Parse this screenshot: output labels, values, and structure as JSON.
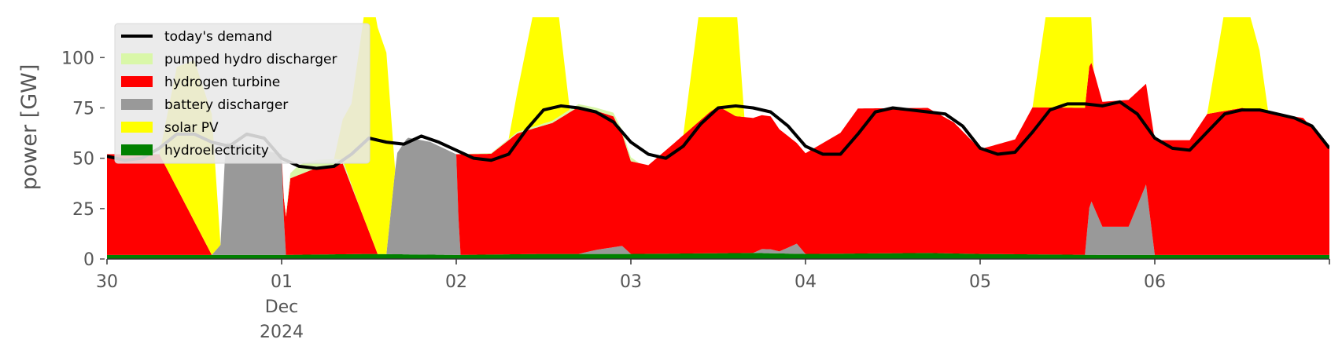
{
  "chart_data": {
    "type": "area",
    "stacked": true,
    "title": "",
    "ylabel": "power [GW]",
    "xlabel": "",
    "x_unit": "day of month",
    "xlim": [
      30.0,
      37.0
    ],
    "ylim": [
      0,
      120
    ],
    "yticks": [
      0,
      25,
      50,
      75,
      100
    ],
    "xticks": [
      {
        "x": 30,
        "label": "30"
      },
      {
        "x": 31,
        "label": "01",
        "sublabel1": "Dec",
        "sublabel2": "2024"
      },
      {
        "x": 32,
        "label": "02"
      },
      {
        "x": 33,
        "label": "03"
      },
      {
        "x": 34,
        "label": "04"
      },
      {
        "x": 35,
        "label": "05"
      },
      {
        "x": 36,
        "label": "06"
      }
    ],
    "grid": false,
    "legend_position": "top-left",
    "legend": [
      {
        "name": "today's demand",
        "kind": "line",
        "color": "#000000"
      },
      {
        "name": "pumped hydro discharger",
        "kind": "patch",
        "color": "#d9f7a8"
      },
      {
        "name": "hydrogen turbine",
        "kind": "patch",
        "color": "#ff0000"
      },
      {
        "name": "battery discharger",
        "kind": "patch",
        "color": "#999999"
      },
      {
        "name": "solar PV",
        "kind": "patch",
        "color": "#ffff00"
      },
      {
        "name": "hydroelectricity",
        "kind": "patch",
        "color": "#008000"
      }
    ],
    "stack_order": [
      "hydroelectricity",
      "battery discharger",
      "hydrogen turbine",
      "pumped hydro discharger",
      "solar PV"
    ],
    "series": [
      {
        "name": "hydroelectricity",
        "color": "#008000",
        "points": [
          [
            30.0,
            2
          ],
          [
            31.0,
            2
          ],
          [
            31.5,
            2.5
          ],
          [
            32.0,
            2
          ],
          [
            32.5,
            2.5
          ],
          [
            33.0,
            2.5
          ],
          [
            33.7,
            3
          ],
          [
            34.0,
            2.5
          ],
          [
            34.7,
            3
          ],
          [
            35.0,
            2.5
          ],
          [
            35.7,
            2
          ],
          [
            36.0,
            2
          ],
          [
            37.0,
            2
          ]
        ]
      },
      {
        "name": "battery discharger",
        "color": "#999999",
        "points": [
          [
            30.0,
            0
          ],
          [
            30.6,
            0
          ],
          [
            30.65,
            5
          ],
          [
            30.68,
            56
          ],
          [
            31.0,
            50
          ],
          [
            31.02,
            0
          ],
          [
            31.6,
            0
          ],
          [
            31.66,
            50
          ],
          [
            31.72,
            58
          ],
          [
            31.85,
            56
          ],
          [
            32.0,
            50
          ],
          [
            32.02,
            0
          ],
          [
            32.7,
            0
          ],
          [
            32.8,
            2
          ],
          [
            32.95,
            4
          ],
          [
            33.0,
            0
          ],
          [
            33.7,
            0
          ],
          [
            33.75,
            2
          ],
          [
            33.8,
            2
          ],
          [
            33.85,
            1
          ],
          [
            33.95,
            5
          ],
          [
            34.0,
            0
          ],
          [
            35.6,
            0
          ],
          [
            35.63,
            28
          ],
          [
            35.7,
            14
          ],
          [
            35.85,
            14
          ],
          [
            35.95,
            35
          ],
          [
            36.0,
            0
          ],
          [
            37.0,
            0
          ]
        ]
      },
      {
        "name": "hydrogen turbine",
        "color": "#ff0000",
        "points": [
          [
            30.0,
            50
          ],
          [
            30.2,
            50
          ],
          [
            30.3,
            50
          ],
          [
            30.6,
            0
          ],
          [
            30.68,
            0
          ],
          [
            31.0,
            0
          ],
          [
            31.05,
            38
          ],
          [
            31.2,
            43
          ],
          [
            31.35,
            45
          ],
          [
            31.55,
            0
          ],
          [
            31.6,
            0
          ],
          [
            31.72,
            0
          ],
          [
            32.0,
            0
          ],
          [
            32.02,
            50
          ],
          [
            32.2,
            50
          ],
          [
            32.35,
            60
          ],
          [
            32.55,
            65
          ],
          [
            32.7,
            73
          ],
          [
            32.9,
            65
          ],
          [
            33.0,
            46
          ],
          [
            33.1,
            44
          ],
          [
            33.25,
            55
          ],
          [
            33.45,
            70
          ],
          [
            33.5,
            73
          ],
          [
            33.6,
            68
          ],
          [
            33.8,
            66
          ],
          [
            33.95,
            50
          ],
          [
            34.0,
            50
          ],
          [
            34.2,
            60
          ],
          [
            34.3,
            72
          ],
          [
            34.5,
            72
          ],
          [
            34.7,
            72
          ],
          [
            34.85,
            65
          ],
          [
            35.0,
            52
          ],
          [
            35.2,
            57
          ],
          [
            35.3,
            73
          ],
          [
            35.6,
            73
          ],
          [
            35.7,
            62
          ],
          [
            35.85,
            63
          ],
          [
            35.95,
            50
          ],
          [
            36.0,
            57
          ],
          [
            36.2,
            57
          ],
          [
            36.3,
            70
          ],
          [
            36.5,
            73
          ],
          [
            36.7,
            70
          ],
          [
            36.85,
            68
          ],
          [
            37.0,
            53
          ]
        ]
      },
      {
        "name": "pumped hydro discharger",
        "color": "#d9f7a8",
        "points": [
          [
            30.0,
            0
          ],
          [
            31.0,
            0
          ],
          [
            31.1,
            5
          ],
          [
            31.3,
            3
          ],
          [
            31.45,
            0
          ],
          [
            32.0,
            0
          ],
          [
            33.0,
            2
          ],
          [
            33.05,
            0
          ],
          [
            37.0,
            0
          ]
        ]
      },
      {
        "name": "solar PV",
        "color": "#ffff00",
        "points": [
          [
            30.0,
            0
          ],
          [
            30.3,
            0
          ],
          [
            30.4,
            60
          ],
          [
            30.5,
            80
          ],
          [
            30.6,
            70
          ],
          [
            30.65,
            0
          ],
          [
            31.3,
            0
          ],
          [
            31.4,
            40
          ],
          [
            31.5,
            125
          ],
          [
            31.6,
            100
          ],
          [
            31.65,
            0
          ],
          [
            32.3,
            0
          ],
          [
            32.4,
            40
          ],
          [
            32.5,
            80
          ],
          [
            32.55,
            80
          ],
          [
            32.65,
            0
          ],
          [
            33.3,
            0
          ],
          [
            33.4,
            60
          ],
          [
            33.5,
            82
          ],
          [
            33.6,
            60
          ],
          [
            33.65,
            0
          ],
          [
            35.3,
            0
          ],
          [
            35.4,
            60
          ],
          [
            35.5,
            125
          ],
          [
            35.6,
            80
          ],
          [
            35.65,
            0
          ],
          [
            36.3,
            0
          ],
          [
            36.4,
            50
          ],
          [
            36.5,
            60
          ],
          [
            36.6,
            30
          ],
          [
            36.65,
            0
          ],
          [
            37.0,
            0
          ]
        ]
      }
    ],
    "demand": {
      "name": "today's demand",
      "color": "#000000",
      "points": [
        [
          30.0,
          51
        ],
        [
          30.1,
          49
        ],
        [
          30.2,
          50
        ],
        [
          30.3,
          55
        ],
        [
          30.4,
          62
        ],
        [
          30.5,
          62
        ],
        [
          30.6,
          58
        ],
        [
          30.7,
          56
        ],
        [
          30.8,
          62
        ],
        [
          30.9,
          60
        ],
        [
          31.0,
          50
        ],
        [
          31.1,
          46
        ],
        [
          31.2,
          45
        ],
        [
          31.3,
          46
        ],
        [
          31.4,
          52
        ],
        [
          31.5,
          60
        ],
        [
          31.6,
          58
        ],
        [
          31.7,
          57
        ],
        [
          31.8,
          61
        ],
        [
          31.9,
          58
        ],
        [
          32.0,
          54
        ],
        [
          32.1,
          50
        ],
        [
          32.2,
          49
        ],
        [
          32.3,
          52
        ],
        [
          32.4,
          64
        ],
        [
          32.5,
          74
        ],
        [
          32.6,
          76
        ],
        [
          32.7,
          75
        ],
        [
          32.8,
          73
        ],
        [
          32.9,
          68
        ],
        [
          33.0,
          58
        ],
        [
          33.1,
          52
        ],
        [
          33.2,
          50
        ],
        [
          33.3,
          56
        ],
        [
          33.4,
          67
        ],
        [
          33.5,
          75
        ],
        [
          33.6,
          76
        ],
        [
          33.7,
          75
        ],
        [
          33.8,
          73
        ],
        [
          33.9,
          66
        ],
        [
          34.0,
          56
        ],
        [
          34.1,
          52
        ],
        [
          34.2,
          52
        ],
        [
          34.3,
          62
        ],
        [
          34.4,
          73
        ],
        [
          34.5,
          75
        ],
        [
          34.6,
          74
        ],
        [
          34.7,
          73
        ],
        [
          34.8,
          72
        ],
        [
          34.9,
          66
        ],
        [
          35.0,
          55
        ],
        [
          35.1,
          52
        ],
        [
          35.2,
          53
        ],
        [
          35.3,
          63
        ],
        [
          35.4,
          74
        ],
        [
          35.5,
          77
        ],
        [
          35.6,
          77
        ],
        [
          35.7,
          76
        ],
        [
          35.8,
          78
        ],
        [
          35.9,
          72
        ],
        [
          36.0,
          60
        ],
        [
          36.1,
          55
        ],
        [
          36.2,
          54
        ],
        [
          36.3,
          63
        ],
        [
          36.4,
          72
        ],
        [
          36.5,
          74
        ],
        [
          36.6,
          74
        ],
        [
          36.7,
          72
        ],
        [
          36.8,
          70
        ],
        [
          36.9,
          66
        ],
        [
          37.0,
          55
        ]
      ]
    }
  }
}
